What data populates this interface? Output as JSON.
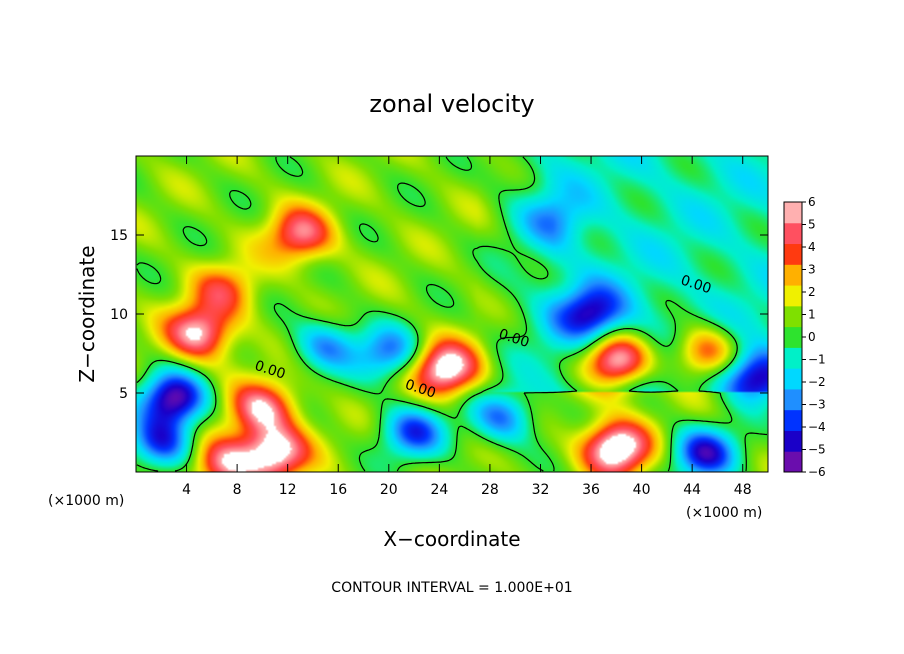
{
  "chart_data": {
    "type": "heatmap",
    "title": "zonal velocity",
    "xlabel": "X−coordinate",
    "ylabel": "Z−coordinate",
    "x_unit_label": "(×1000 m)",
    "x_ticks": [
      4,
      8,
      12,
      16,
      20,
      24,
      28,
      32,
      36,
      40,
      44,
      48
    ],
    "y_ticks": [
      5,
      10,
      15
    ],
    "xlim": [
      0,
      50
    ],
    "ylim": [
      0,
      20
    ],
    "grid": false,
    "colorbar": {
      "ticks": [
        6,
        5,
        4,
        3,
        2,
        1,
        0,
        -1,
        -2,
        -3,
        -4,
        -5,
        -6
      ],
      "tick_labels": [
        "6",
        "5",
        "4",
        "3",
        "2",
        "1",
        "0",
        "−1",
        "−2",
        "−3",
        "−4",
        "−5",
        "−6"
      ],
      "range": [
        -6,
        6
      ],
      "position": "right",
      "colors": [
        "#6a0dad",
        "#1a00c8",
        "#0033ff",
        "#1f8fff",
        "#00d8ff",
        "#00f0c8",
        "#2ee32e",
        "#7fe000",
        "#f0f000",
        "#ffb000",
        "#ff3a10",
        "#ff5060",
        "#ffb0b0"
      ]
    },
    "contour_label": "0.00",
    "contour_labels": [
      {
        "text": "0.00",
        "x": 10.5,
        "z": 6.2
      },
      {
        "text": "0.00",
        "x": 22.4,
        "z": 5.0
      },
      {
        "text": "0.00",
        "x": 29.8,
        "z": 8.2
      },
      {
        "text": "0.00",
        "x": 44.2,
        "z": 11.6
      }
    ],
    "anomalies": [
      {
        "x": 13,
        "z": 15,
        "v": 4.5
      },
      {
        "x": 5,
        "z": 8.8,
        "v": 5.5
      },
      {
        "x": 24.5,
        "z": 6.5,
        "v": 6.5
      },
      {
        "x": 38,
        "z": 7,
        "v": 7
      },
      {
        "x": 45,
        "z": 7.5,
        "v": 5
      },
      {
        "x": 10,
        "z": 4,
        "v": 5
      },
      {
        "x": 7,
        "z": 11.5,
        "v": 3
      },
      {
        "x": 3,
        "z": 4.6,
        "v": -6.5
      },
      {
        "x": 20,
        "z": 7.5,
        "v": -4
      },
      {
        "x": 15,
        "z": 8,
        "v": -3.5
      },
      {
        "x": 36,
        "z": 10,
        "v": -4.5
      },
      {
        "x": 33,
        "z": 16,
        "v": -2
      },
      {
        "x": 49,
        "z": 6,
        "v": -5
      },
      {
        "x": 29,
        "z": 3.5,
        "v": -4
      },
      {
        "x": 22,
        "z": 2.5,
        "v": -4.5
      },
      {
        "x": 38,
        "z": 1.5,
        "v": 7
      },
      {
        "x": 11,
        "z": 1.2,
        "v": 6
      },
      {
        "x": 2,
        "z": 1.8,
        "v": -5
      },
      {
        "x": 45,
        "z": 1.2,
        "v": -5.5
      },
      {
        "x": 7,
        "z": 0.5,
        "v": 5
      }
    ]
  },
  "footer": {
    "contour_interval": "CONTOUR INTERVAL = 1.000E+01"
  }
}
